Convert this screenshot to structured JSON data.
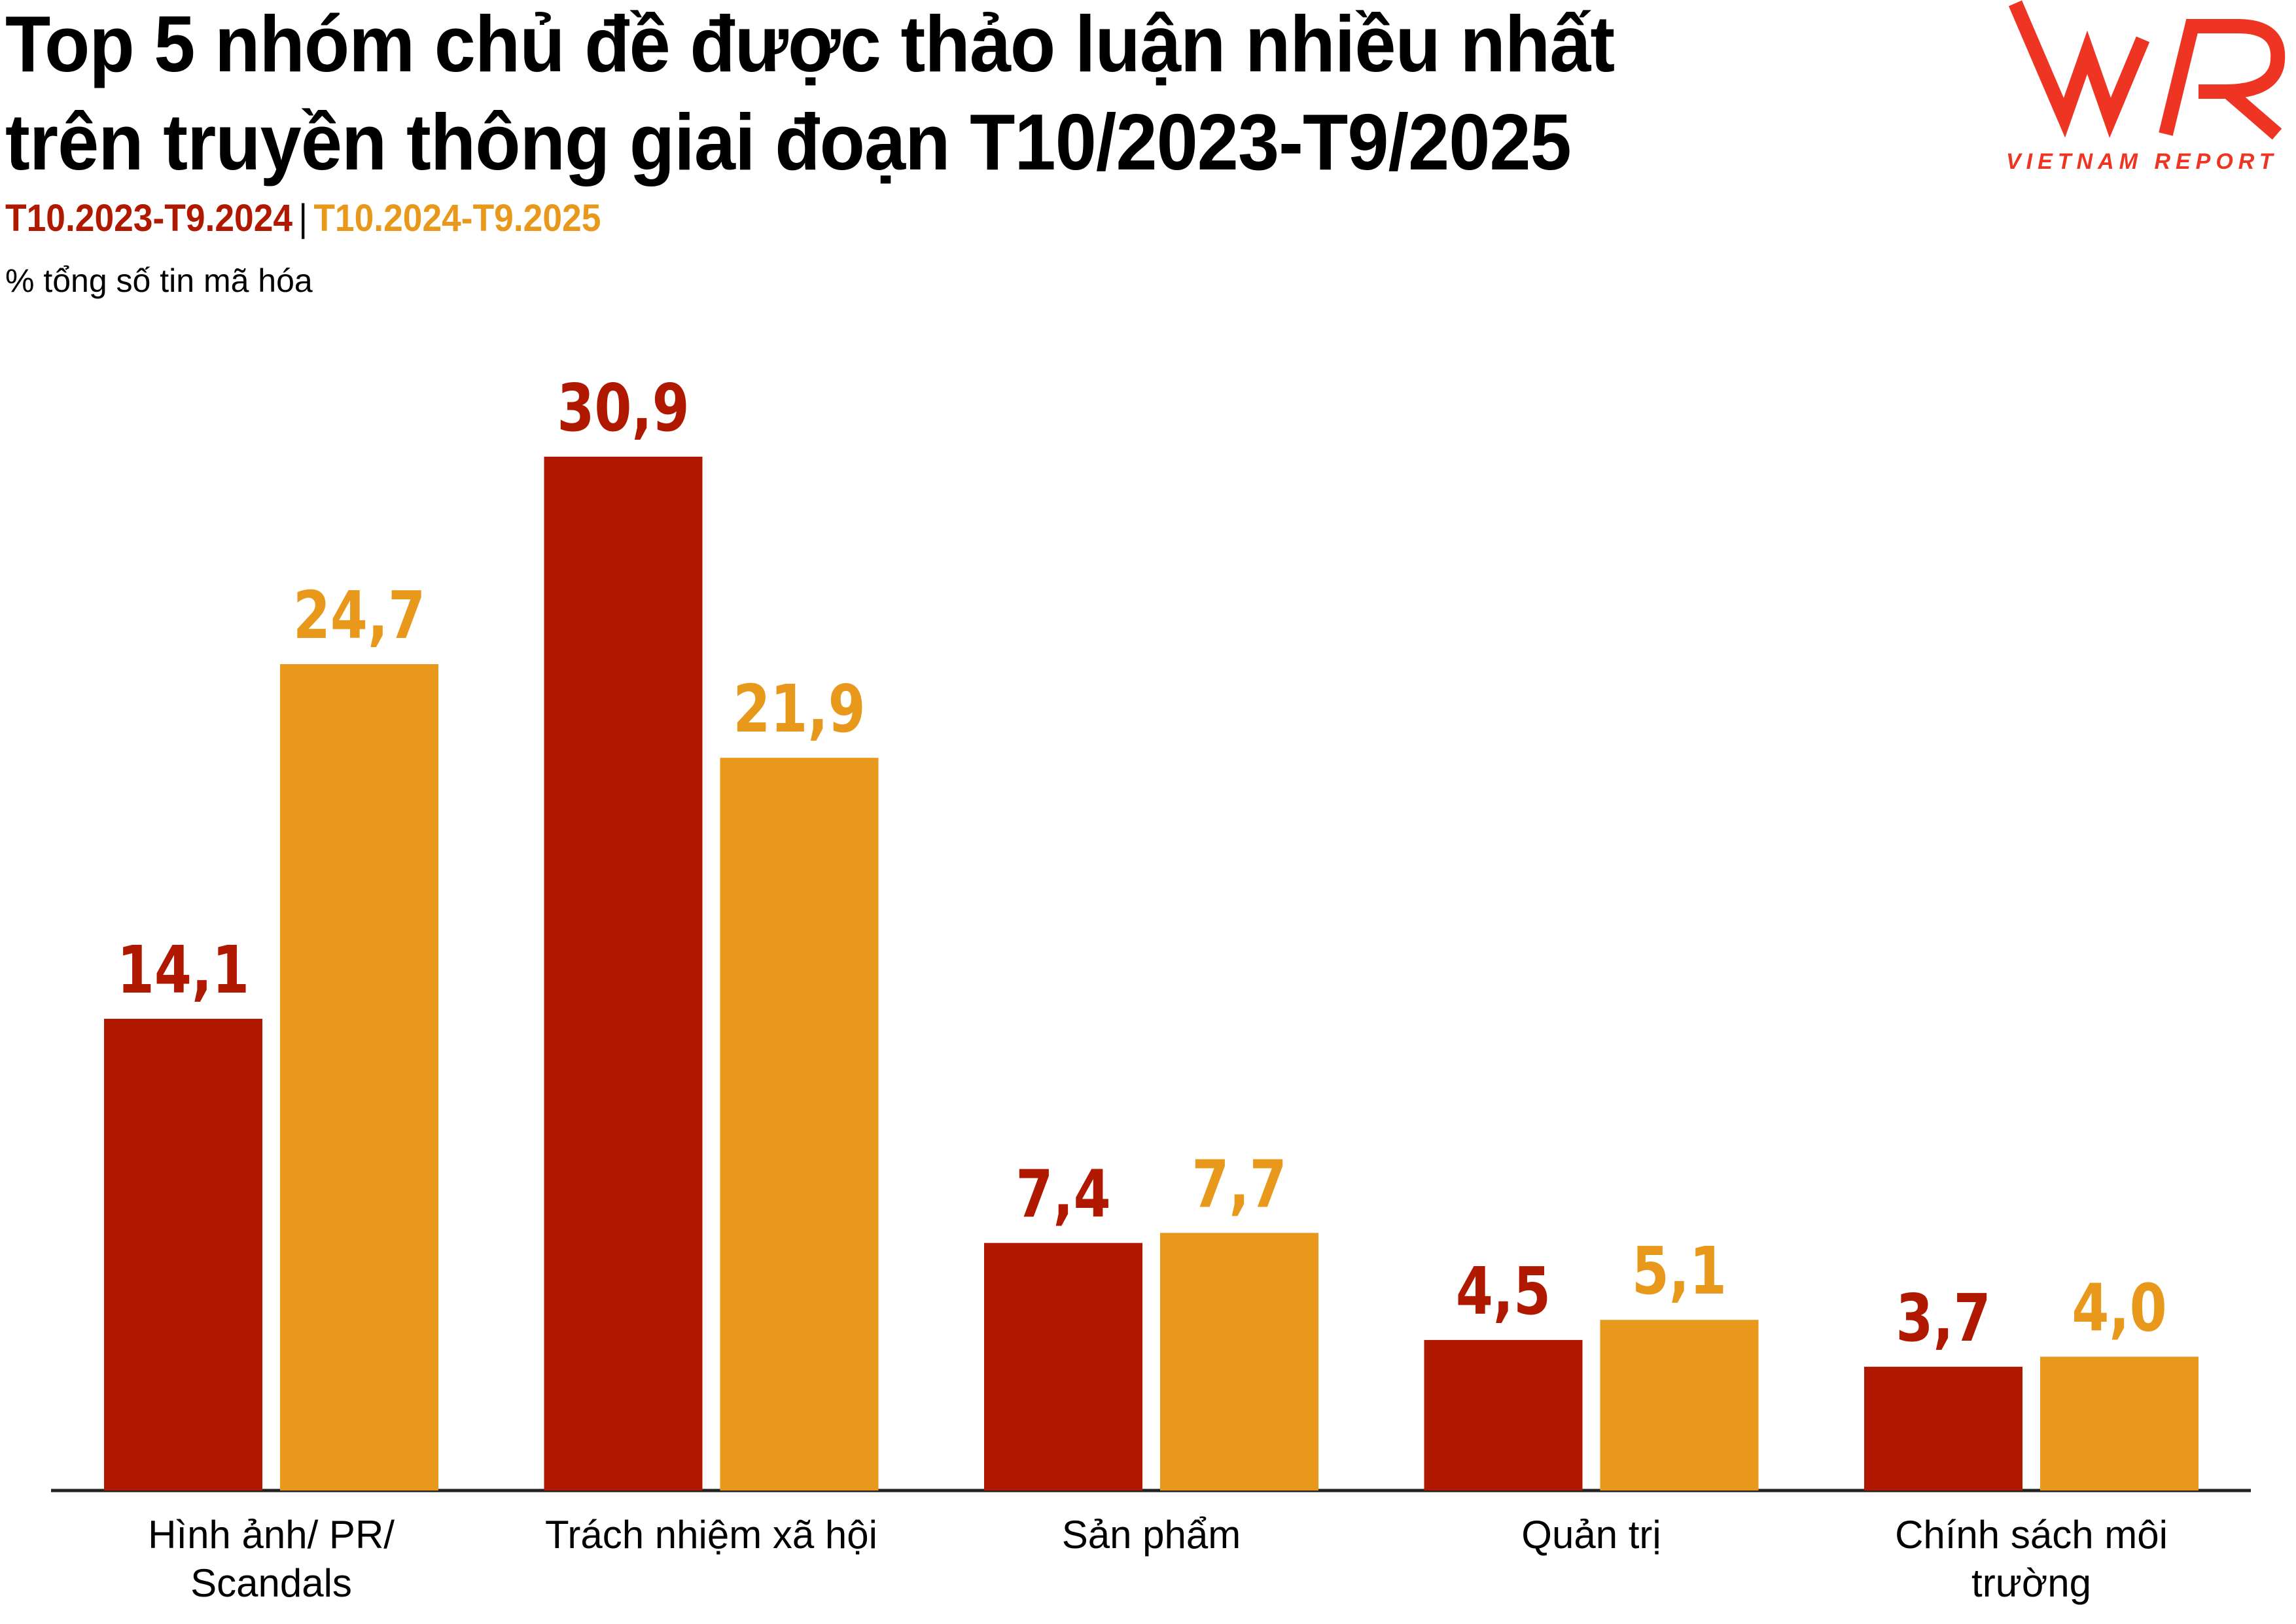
{
  "title_lines": [
    "Top 5 nhóm chủ đề được thảo luận nhiều nhất",
    "trên truyền thông giai đoạn T10/2023-T9/2025"
  ],
  "logo": {
    "mark": "VNR",
    "text": "VIETNAM REPORT",
    "color": "#EE3524"
  },
  "subtitle": "% tổng số tin mã hóa",
  "chart_data": {
    "type": "bar",
    "title": "Top 5 nhóm chủ đề được thảo luận nhiều nhất trên truyền thông giai đoạn T10/2023-T9/2025",
    "ylabel": "% tổng số tin mã hóa",
    "categories": [
      [
        "Hình ảnh/ PR/",
        "Scandals"
      ],
      [
        "Trách nhiệm xã hội"
      ],
      [
        "Sản phẩm"
      ],
      [
        "Quản trị"
      ],
      [
        "Chính sách môi",
        "trường"
      ]
    ],
    "series": [
      {
        "name": "T10.2023-T9.2024",
        "color": "#B01800",
        "values": [
          14.1,
          30.9,
          7.4,
          4.5,
          3.7
        ],
        "labels": [
          "14,1",
          "30,9",
          "7,4",
          "4,5",
          "3,7"
        ]
      },
      {
        "name": "T10.2024-T9.2025",
        "color": "#E8981A",
        "values": [
          24.7,
          21.9,
          7.7,
          5.1,
          4.0
        ],
        "labels": [
          "24,7",
          "21,9",
          "7,7",
          "5,1",
          "4,0"
        ]
      }
    ],
    "ylim": [
      0,
      30.9
    ],
    "grid": false,
    "legend": "top-left",
    "legend_separator": "|"
  }
}
